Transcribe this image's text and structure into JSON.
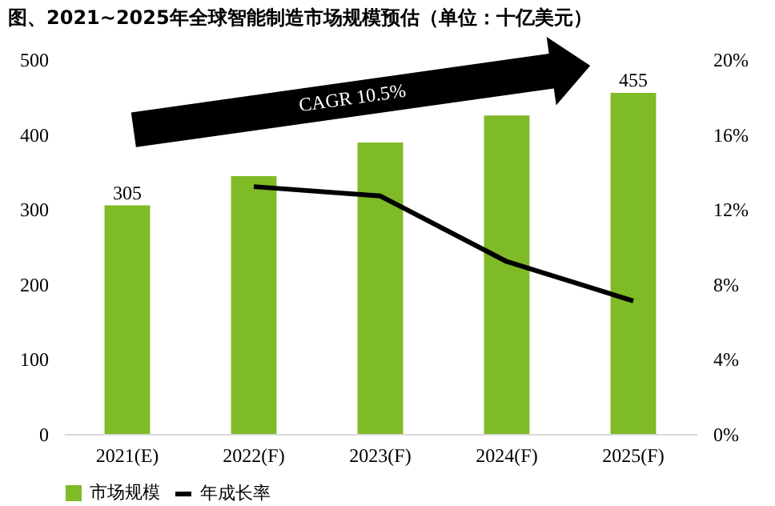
{
  "chart_data": {
    "type": "bar",
    "title": "图、2021~2025年全球智能制造市场规模预估（单位：十亿美元）",
    "categories": [
      "2021(E)",
      "2022(F)",
      "2023(F)",
      "2024(F)",
      "2025(F)"
    ],
    "series": [
      {
        "name": "市场规模",
        "type": "bar",
        "color": "#7fba27",
        "values": [
          305,
          344,
          389,
          425,
          455
        ],
        "value_labels": [
          "305",
          null,
          null,
          null,
          "455"
        ]
      },
      {
        "name": "年成长率",
        "type": "line",
        "axis": "y2",
        "color": "#000000",
        "values": [
          null,
          13.2,
          12.7,
          9.2,
          7.1
        ]
      }
    ],
    "ylim": [
      0,
      500
    ],
    "yticks": [
      0,
      100,
      200,
      300,
      400,
      500
    ],
    "y2lim": [
      0,
      20
    ],
    "y2ticks": [
      {
        "value": 0,
        "label": "0%"
      },
      {
        "value": 4,
        "label": "4%"
      },
      {
        "value": 8,
        "label": "8%"
      },
      {
        "value": 12,
        "label": "12%"
      },
      {
        "value": 16,
        "label": "16%"
      },
      {
        "value": 20,
        "label": "20%"
      }
    ],
    "annotations": [
      "CAGR 10.5%"
    ],
    "grid": false,
    "legend": "bottom",
    "marker": "none",
    "line_style": "solid"
  }
}
